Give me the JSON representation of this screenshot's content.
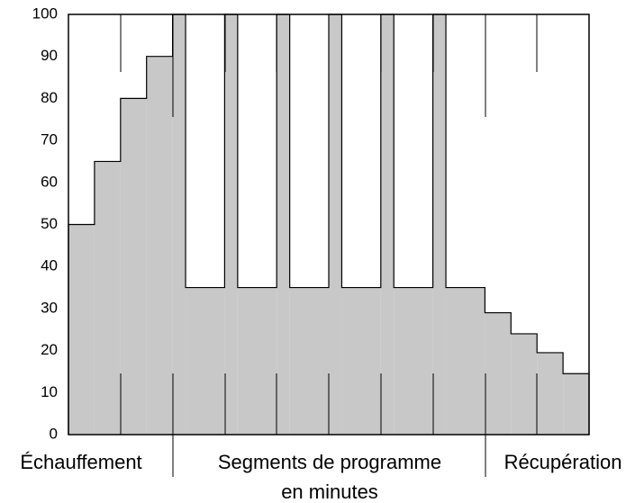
{
  "chart_data": {
    "type": "step-area",
    "x": [
      0,
      0.5,
      1,
      1.5,
      2,
      2.25,
      3,
      3.25,
      4,
      4.25,
      5,
      5.25,
      6,
      6.25,
      7,
      7.25,
      8,
      8.5,
      9,
      9.5
    ],
    "values": [
      50,
      65,
      80,
      90,
      100,
      35,
      100,
      35,
      100,
      35,
      100,
      35,
      100,
      35,
      100,
      35,
      29,
      24,
      19.5,
      14.5
    ],
    "color": "#c8c8c8",
    "xlim": [
      0,
      10
    ],
    "ylim": [
      0,
      100
    ],
    "yticks": [
      0,
      10,
      20,
      30,
      40,
      50,
      60,
      70,
      80,
      90,
      100
    ],
    "section_labels": [
      "Échauffement",
      "Segments de programme",
      "Récupération"
    ],
    "xlabel": "en minutes"
  }
}
